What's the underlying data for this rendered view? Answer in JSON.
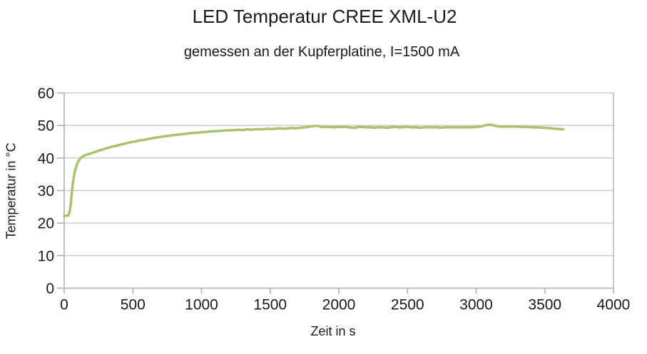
{
  "page": {
    "background": "#ffffff"
  },
  "chart_data": {
    "type": "line",
    "title": "LED Temperatur CREE XML-U2",
    "subtitle": "gemessen an der Kupferplatine, I=1500 mA",
    "xlabel": "Zeit in s",
    "ylabel": "Temperatur in °C",
    "xlim": [
      0,
      4000
    ],
    "ylim": [
      0,
      60
    ],
    "x_ticks": [
      0,
      500,
      1000,
      1500,
      2000,
      2500,
      3000,
      3500,
      4000
    ],
    "y_ticks": [
      0,
      10,
      20,
      30,
      40,
      50,
      60
    ],
    "grid": "horizontal-only",
    "legend_position": "none",
    "colors": {
      "series": "#a8c36c",
      "grid": "#c9c9c9",
      "axis": "#b0b0b0",
      "text": "#1a1a1a",
      "background": "#ffffff"
    },
    "series": [
      {
        "name": "LED Temperatur",
        "color": "#a8c36c",
        "points": [
          [
            0,
            22.2
          ],
          [
            10,
            22.2
          ],
          [
            20,
            22.3
          ],
          [
            30,
            22.3
          ],
          [
            40,
            23.5
          ],
          [
            48,
            26.0
          ],
          [
            55,
            29.2
          ],
          [
            62,
            31.8
          ],
          [
            70,
            34.2
          ],
          [
            78,
            35.9
          ],
          [
            86,
            37.2
          ],
          [
            95,
            38.3
          ],
          [
            105,
            39.1
          ],
          [
            115,
            39.7
          ],
          [
            125,
            40.2
          ],
          [
            140,
            40.6
          ],
          [
            155,
            40.9
          ],
          [
            170,
            41.1
          ],
          [
            185,
            41.3
          ],
          [
            200,
            41.5
          ],
          [
            220,
            41.8
          ],
          [
            240,
            42.1
          ],
          [
            260,
            42.4
          ],
          [
            280,
            42.6
          ],
          [
            300,
            42.9
          ],
          [
            325,
            43.2
          ],
          [
            350,
            43.5
          ],
          [
            375,
            43.7
          ],
          [
            400,
            44.0
          ],
          [
            430,
            44.3
          ],
          [
            460,
            44.6
          ],
          [
            490,
            44.9
          ],
          [
            520,
            45.1
          ],
          [
            550,
            45.4
          ],
          [
            580,
            45.6
          ],
          [
            610,
            45.8
          ],
          [
            640,
            46.1
          ],
          [
            670,
            46.3
          ],
          [
            700,
            46.5
          ],
          [
            730,
            46.7
          ],
          [
            760,
            46.8
          ],
          [
            790,
            47.0
          ],
          [
            820,
            47.1
          ],
          [
            850,
            47.3
          ],
          [
            880,
            47.4
          ],
          [
            910,
            47.6
          ],
          [
            940,
            47.7
          ],
          [
            970,
            47.8
          ],
          [
            1000,
            47.9
          ],
          [
            1030,
            48.0
          ],
          [
            1060,
            48.2
          ],
          [
            1090,
            48.2
          ],
          [
            1120,
            48.3
          ],
          [
            1150,
            48.4
          ],
          [
            1180,
            48.5
          ],
          [
            1210,
            48.5
          ],
          [
            1240,
            48.6
          ],
          [
            1270,
            48.7
          ],
          [
            1300,
            48.6
          ],
          [
            1330,
            48.8
          ],
          [
            1360,
            48.7
          ],
          [
            1390,
            48.8
          ],
          [
            1420,
            48.9
          ],
          [
            1450,
            48.8
          ],
          [
            1480,
            49.0
          ],
          [
            1510,
            48.9
          ],
          [
            1540,
            49.0
          ],
          [
            1570,
            49.1
          ],
          [
            1600,
            49.0
          ],
          [
            1630,
            49.1
          ],
          [
            1660,
            49.2
          ],
          [
            1690,
            49.1
          ],
          [
            1720,
            49.3
          ],
          [
            1750,
            49.4
          ],
          [
            1780,
            49.6
          ],
          [
            1810,
            49.8
          ],
          [
            1840,
            49.9
          ],
          [
            1870,
            49.6
          ],
          [
            1900,
            49.5
          ],
          [
            1930,
            49.6
          ],
          [
            1960,
            49.4
          ],
          [
            1990,
            49.6
          ],
          [
            2020,
            49.5
          ],
          [
            2050,
            49.6
          ],
          [
            2080,
            49.4
          ],
          [
            2110,
            49.3
          ],
          [
            2140,
            49.5
          ],
          [
            2170,
            49.6
          ],
          [
            2200,
            49.4
          ],
          [
            2230,
            49.5
          ],
          [
            2260,
            49.3
          ],
          [
            2290,
            49.5
          ],
          [
            2320,
            49.4
          ],
          [
            2350,
            49.3
          ],
          [
            2380,
            49.5
          ],
          [
            2410,
            49.6
          ],
          [
            2440,
            49.4
          ],
          [
            2470,
            49.5
          ],
          [
            2500,
            49.6
          ],
          [
            2530,
            49.4
          ],
          [
            2560,
            49.5
          ],
          [
            2590,
            49.3
          ],
          [
            2620,
            49.4
          ],
          [
            2650,
            49.5
          ],
          [
            2680,
            49.4
          ],
          [
            2710,
            49.5
          ],
          [
            2740,
            49.3
          ],
          [
            2770,
            49.4
          ],
          [
            2800,
            49.5
          ],
          [
            2830,
            49.4
          ],
          [
            2860,
            49.5
          ],
          [
            2890,
            49.4
          ],
          [
            2920,
            49.5
          ],
          [
            2950,
            49.4
          ],
          [
            2980,
            49.5
          ],
          [
            3010,
            49.6
          ],
          [
            3040,
            49.7
          ],
          [
            3070,
            50.1
          ],
          [
            3100,
            50.3
          ],
          [
            3130,
            50.0
          ],
          [
            3160,
            49.7
          ],
          [
            3190,
            49.6
          ],
          [
            3220,
            49.7
          ],
          [
            3250,
            49.6
          ],
          [
            3280,
            49.7
          ],
          [
            3310,
            49.6
          ],
          [
            3340,
            49.6
          ],
          [
            3370,
            49.5
          ],
          [
            3400,
            49.5
          ],
          [
            3430,
            49.4
          ],
          [
            3460,
            49.4
          ],
          [
            3490,
            49.3
          ],
          [
            3520,
            49.2
          ],
          [
            3550,
            49.1
          ],
          [
            3580,
            49.0
          ],
          [
            3610,
            48.9
          ],
          [
            3635,
            48.8
          ]
        ]
      }
    ]
  }
}
